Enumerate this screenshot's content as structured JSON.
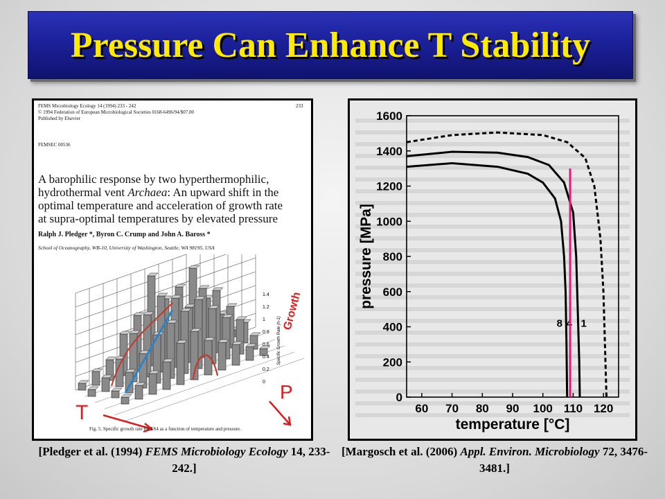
{
  "slide": {
    "title": "Pressure Can Enhance T Stability"
  },
  "left_panel": {
    "journal_line1": "FEMS Microbiology Ecology 14 (1994) 233 - 242",
    "journal_line2": "© 1994 Federation of European Microbiological Societies 0168-6496/94/$07.00",
    "journal_line3": "Published by Elsevier",
    "page_number": "233",
    "femsec_code": "FEMSEC 00536",
    "article_title_1": "A barophilic response by two hyperthermophilic,",
    "article_title_2": "hydrothermal vent",
    "article_title_italic": "Archaea",
    "article_title_3": ": An upward shift in the",
    "article_title_4": "optimal temperature and acceleration of growth rate",
    "article_title_5": "at supra-optimal temperatures by elevated pressure",
    "authors": "Ralph J. Pledger *, Byron C. Crump and John A. Baross *",
    "affiliation": "School of Oceanography, WB-10, University of Washington, Seattle, WA 98195, USA",
    "figure_caption": "Fig. 5. Specific growth rate for ES4 as a function of temperature and pressure.",
    "annotation_T": "T",
    "annotation_P": "P",
    "annotation_growth": "Growth",
    "zlabel": "Specific Growth Rate (h-1)",
    "z_ticks": [
      "1.4",
      "1.2",
      "1",
      "0.8",
      "0.6",
      "0.4",
      "0.2",
      "0"
    ]
  },
  "right_panel": {
    "chart_data": {
      "type": "line",
      "xlabel": "temperature [°C]",
      "ylabel": "pressure [MPa]",
      "xlim": [
        55,
        125
      ],
      "ylim": [
        0,
        1600
      ],
      "x_ticks": [
        "60",
        "70",
        "80",
        "90",
        "100",
        "110",
        "120"
      ],
      "y_ticks": [
        "0",
        "200",
        "400",
        "600",
        "800",
        "1000",
        "1200",
        "1400",
        "1600"
      ],
      "series_labels": [
        "8",
        "4",
        "1"
      ],
      "series": [
        {
          "name": "8",
          "style": "solid",
          "points": [
            [
              55,
              1310
            ],
            [
              70,
              1330
            ],
            [
              85,
              1310
            ],
            [
              95,
              1270
            ],
            [
              100,
              1220
            ],
            [
              104,
              1130
            ],
            [
              106,
              1000
            ],
            [
              107,
              800
            ],
            [
              107.5,
              600
            ],
            [
              107.8,
              300
            ],
            [
              108,
              0
            ]
          ]
        },
        {
          "name": "4",
          "style": "solid",
          "points": [
            [
              55,
              1370
            ],
            [
              70,
              1395
            ],
            [
              85,
              1390
            ],
            [
              95,
              1365
            ],
            [
              102,
              1320
            ],
            [
              107,
              1220
            ],
            [
              110,
              1050
            ],
            [
              111,
              800
            ],
            [
              111.5,
              500
            ],
            [
              112,
              200
            ],
            [
              112.2,
              0
            ]
          ]
        },
        {
          "name": "1",
          "style": "dashed",
          "points": [
            [
              55,
              1450
            ],
            [
              70,
              1490
            ],
            [
              85,
              1505
            ],
            [
              100,
              1490
            ],
            [
              108,
              1450
            ],
            [
              114,
              1360
            ],
            [
              117,
              1200
            ],
            [
              119,
              900
            ],
            [
              120,
              600
            ],
            [
              120.5,
              300
            ],
            [
              121,
              0
            ]
          ]
        }
      ],
      "marker_line": {
        "x": 109,
        "y_range": [
          0,
          1300
        ],
        "color": "#e0197a"
      }
    }
  },
  "captions": {
    "left_1": "[Pledger et al. (1994) ",
    "left_italic": "FEMS Microbiology Ecology",
    "left_2": " 14, 233-242.]",
    "right_1": "[Margosch et al. (2006) ",
    "right_italic": "Appl. Environ. Microbiology",
    "right_2": " 72, 3476-3481.]"
  }
}
